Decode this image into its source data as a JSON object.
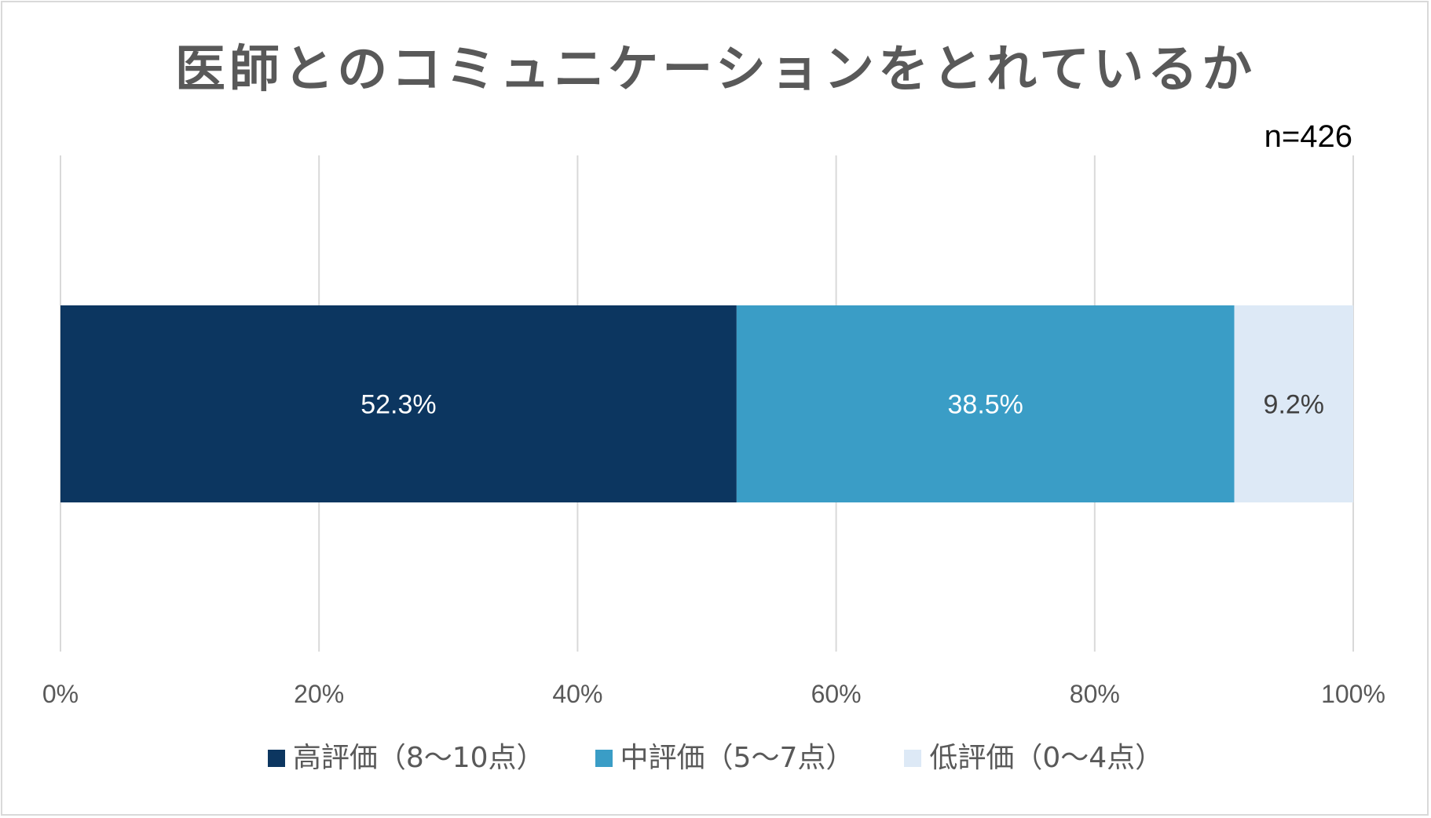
{
  "chart_data": {
    "type": "bar",
    "orientation": "horizontal",
    "stacked": true,
    "percent_stacked": true,
    "title": "医師とのコミュニケーションをとれているか",
    "annotation": "n=426",
    "categories": [
      ""
    ],
    "series": [
      {
        "name": "高評価（8～10点）",
        "values": [
          52.3
        ],
        "label": "52.3%",
        "color": "#0c3660",
        "label_color": "#ffffff"
      },
      {
        "name": "中評価（5～7点）",
        "values": [
          38.5
        ],
        "label": "38.5%",
        "color": "#3a9dc6",
        "label_color": "#ffffff"
      },
      {
        "name": "低評価（0～4点）",
        "values": [
          9.2
        ],
        "label": "9.2%",
        "color": "#dde9f6",
        "label_color": "#404040"
      }
    ],
    "xlim": [
      0,
      100
    ],
    "x_ticks": [
      0,
      20,
      40,
      60,
      80,
      100
    ],
    "x_tick_labels": [
      "0%",
      "20%",
      "40%",
      "60%",
      "80%",
      "100%"
    ],
    "grid": true,
    "legend_position": "bottom"
  }
}
